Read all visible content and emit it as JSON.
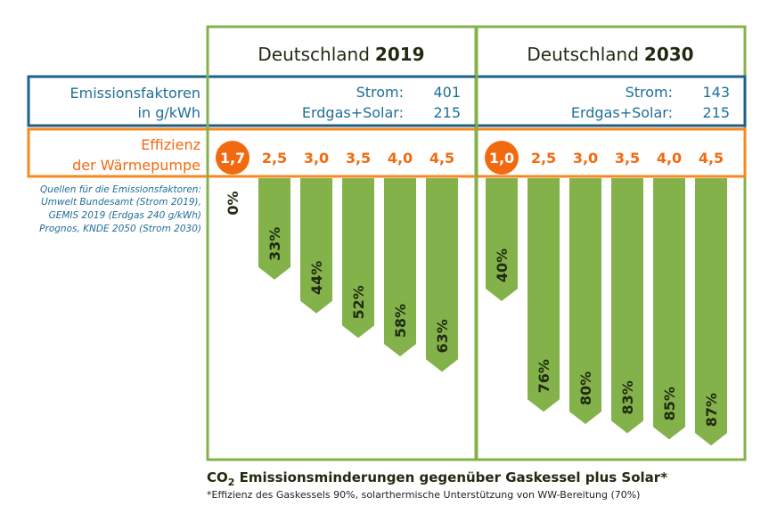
{
  "header": {
    "row1_label_line1": "Emissionsfaktoren",
    "row1_label_line2": "in g/kWh",
    "row2_label_line1": "Effizienz",
    "row2_label_line2": "der Wärmepumpe",
    "sources": [
      "Quellen für die Emissionsfaktoren:",
      "Umwelt Bundesamt (Strom 2019),",
      "GEMIS 2019 (Erdgas 240 g/kWh)",
      "Prognos, KNDE 2050 (Strom 2030)"
    ]
  },
  "colors": {
    "bar": "#84b24a",
    "panel_border": "#84b24a",
    "emission_border": "#1f5f8b",
    "efficiency_border": "#f5891f",
    "highlight_circle": "#f26a10"
  },
  "chart_data": [
    {
      "type": "bar",
      "title_prefix": "Deutschland",
      "title_year": "2019",
      "strom_label": "Strom:",
      "strom_value": "401",
      "gas_label": "Erdgas+Solar:",
      "gas_value": "215",
      "categories": [
        "1,7",
        "2,5",
        "3,0",
        "3,5",
        "4,0",
        "4,5"
      ],
      "highlighted_category": "1,7",
      "values": [
        0,
        33,
        44,
        52,
        58,
        63
      ],
      "labels": [
        "0%",
        "33%",
        "44%",
        "52%",
        "58%",
        "63%"
      ]
    },
    {
      "type": "bar",
      "title_prefix": "Deutschland",
      "title_year": "2030",
      "strom_label": "Strom:",
      "strom_value": "143",
      "gas_label": "Erdgas+Solar:",
      "gas_value": "215",
      "categories": [
        "1,0",
        "2,5",
        "3,0",
        "3,5",
        "4,0",
        "4,5"
      ],
      "highlighted_category": "1,0",
      "values": [
        40,
        76,
        80,
        83,
        85,
        87
      ],
      "labels": [
        "40%",
        "76%",
        "80%",
        "83%",
        "85%",
        "87%"
      ]
    }
  ],
  "footer": {
    "caption_co": "CO",
    "caption_sub": "2",
    "caption_rest": " Emissionsminderungen gegenüber Gaskessel plus Solar*",
    "footnote": "*Effizienz des Gaskessels 90%, solarthermische Unterstützung von WW-Bereitung (70%)"
  }
}
